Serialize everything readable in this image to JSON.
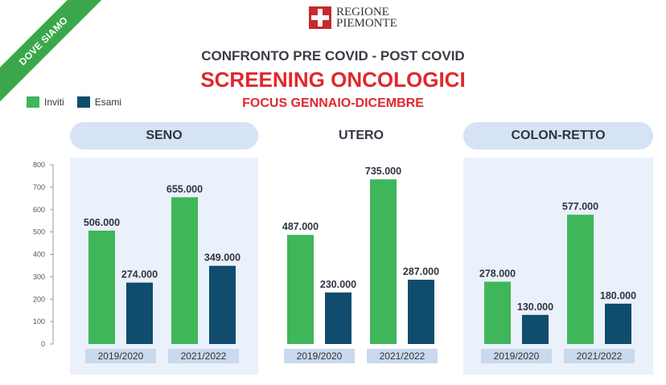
{
  "badge": "DOVE SIAMO",
  "logo": {
    "line1": "REGIONE",
    "line2": "PIEMONTE"
  },
  "title": "CONFRONTO PRE COVID - POST COVID",
  "subtitle": "SCREENING ONCOLOGICI",
  "subtitle2": "FOCUS GENNAIO-DICEMBRE",
  "colors": {
    "inviti": "#3fb65a",
    "esami": "#0f4c6e",
    "accent_red": "#e0282e",
    "panel": "#d5e3f4"
  },
  "chart_data": {
    "type": "bar",
    "yticks": [
      "0",
      "100",
      "200",
      "300",
      "400",
      "500",
      "600",
      "700",
      "800"
    ],
    "ylim": [
      0,
      800
    ],
    "grid": false,
    "legend": {
      "position": "top-left",
      "entries": [
        "Inviti",
        "Esami"
      ]
    },
    "groups": [
      {
        "name": "SENO",
        "categories": [
          "2019/2020",
          "2021/2022"
        ],
        "series": [
          {
            "name": "Inviti",
            "values": [
              506,
              655
            ],
            "labels": [
              "506.000",
              "655.000"
            ]
          },
          {
            "name": "Esami",
            "values": [
              274,
              349
            ],
            "labels": [
              "274.000",
              "349.000"
            ]
          }
        ]
      },
      {
        "name": "UTERO",
        "categories": [
          "2019/2020",
          "2021/2022"
        ],
        "series": [
          {
            "name": "Inviti",
            "values": [
              487,
              735
            ],
            "labels": [
              "487.000",
              "735.000"
            ]
          },
          {
            "name": "Esami",
            "values": [
              230,
              287
            ],
            "labels": [
              "230.000",
              "287.000"
            ]
          }
        ]
      },
      {
        "name": "COLON-RETTO",
        "categories": [
          "2019/2020",
          "2021/2022"
        ],
        "series": [
          {
            "name": "Inviti",
            "values": [
              278,
              577
            ],
            "labels": [
              "278.000",
              "577.000"
            ]
          },
          {
            "name": "Esami",
            "values": [
              130,
              180
            ],
            "labels": [
              "130.000",
              "180.000"
            ]
          }
        ]
      }
    ]
  }
}
